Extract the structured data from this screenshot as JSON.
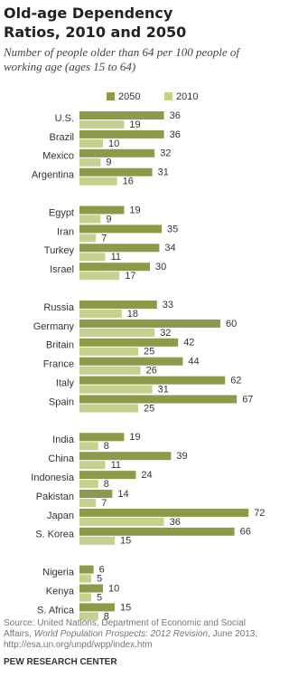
{
  "chart_data": {
    "type": "bar",
    "orientation": "horizontal",
    "title": "Old-age Dependency Ratios, 2010 and 2050",
    "subtitle": "Number of people older than 64 per 100 people of working age (ages 15 to 64)",
    "categories": [
      "U.S.",
      "Brazil",
      "Mexico",
      "Argentina",
      null,
      "Egypt",
      "Iran",
      "Turkey",
      "Israel",
      null,
      "Russia",
      "Germany",
      "Britain",
      "France",
      "Italy",
      "Spain",
      null,
      "India",
      "China",
      "Indonesia",
      "Pakistan",
      "Japan",
      "S. Korea",
      null,
      "Nigeria",
      "Kenya",
      "S. Africa"
    ],
    "series": [
      {
        "name": "2050",
        "color": "#8d9a4a",
        "values": [
          36,
          36,
          32,
          31,
          null,
          19,
          35,
          34,
          30,
          null,
          33,
          60,
          42,
          44,
          62,
          67,
          null,
          19,
          39,
          24,
          14,
          72,
          66,
          null,
          6,
          10,
          15
        ]
      },
      {
        "name": "2010",
        "color": "#c6d08f",
        "values": [
          19,
          10,
          9,
          16,
          null,
          9,
          7,
          11,
          17,
          null,
          18,
          32,
          25,
          26,
          31,
          25,
          null,
          8,
          11,
          8,
          7,
          36,
          15,
          null,
          5,
          5,
          8
        ]
      }
    ],
    "source": [
      "Source: United Nations, Department of Economic and Social Affairs, ",
      "World Population Prospects: 2012 Revision",
      ", June 2013, http://esa.un.org/unpd/wpp/index.htm"
    ],
    "credit": "PEW RESEARCH CENTER"
  }
}
